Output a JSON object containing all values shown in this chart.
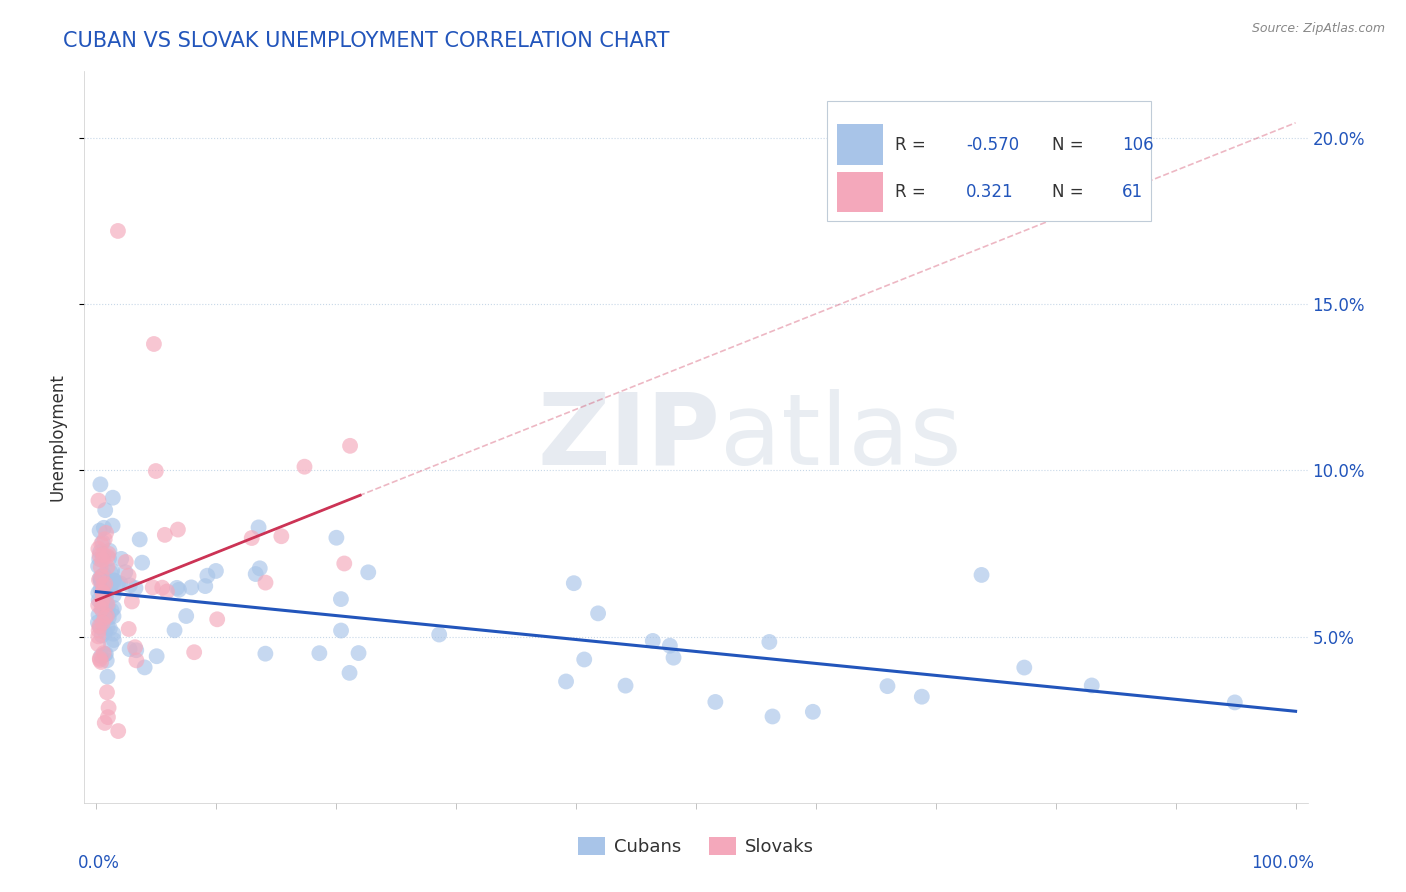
{
  "title": "CUBAN VS SLOVAK UNEMPLOYMENT CORRELATION CHART",
  "source": "Source: ZipAtlas.com",
  "ylabel": "Unemployment",
  "ylabel_right_ticks": [
    "20.0%",
    "15.0%",
    "10.0%",
    "5.0%"
  ],
  "ylabel_right_vals": [
    0.2,
    0.15,
    0.1,
    0.05
  ],
  "cuban_R": -0.57,
  "cuban_N": 106,
  "slovak_R": 0.321,
  "slovak_N": 61,
  "cuban_color": "#a8c4e8",
  "slovak_color": "#f4a8bb",
  "cuban_line_color": "#2255bb",
  "slovak_line_color": "#cc3355",
  "background_color": "#ffffff",
  "grid_color": "#c8d8e8",
  "title_color": "#2255bb",
  "axis_color": "#2255bb",
  "text_color": "#333333"
}
